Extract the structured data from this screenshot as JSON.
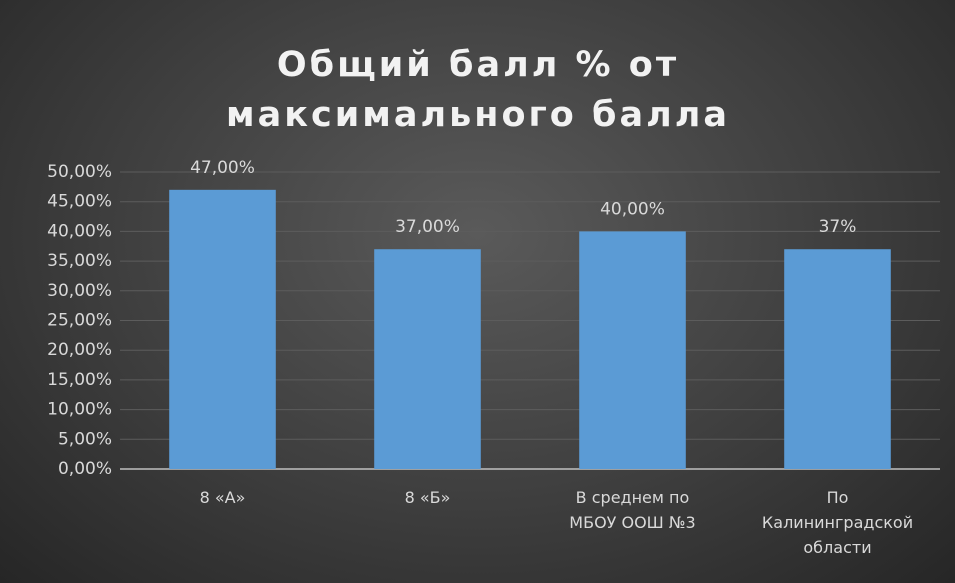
{
  "chart_data": {
    "type": "bar",
    "title": "Общий балл % от максимального балла",
    "categories": [
      "8 «А»",
      "8 «Б»",
      "В среднем по МБОУ ООШ №3",
      "По Калининградской области"
    ],
    "values": [
      47,
      37,
      40,
      37
    ],
    "value_labels": [
      "47,00%",
      "37,00%",
      "40,00%",
      "37%"
    ],
    "color": "#5b9bd5",
    "ylim": [
      0,
      50
    ],
    "yticks": [
      {
        "value": 0,
        "label": "0,00%"
      },
      {
        "value": 5,
        "label": "5,00%"
      },
      {
        "value": 10,
        "label": "10,00%"
      },
      {
        "value": 15,
        "label": "15,00%"
      },
      {
        "value": 20,
        "label": "20,00%"
      },
      {
        "value": 25,
        "label": "25,00%"
      },
      {
        "value": 30,
        "label": "30,00%"
      },
      {
        "value": 35,
        "label": "35,00%"
      },
      {
        "value": 40,
        "label": "40,00%"
      },
      {
        "value": 45,
        "label": "45,00%"
      },
      {
        "value": 50,
        "label": "50,00%"
      }
    ],
    "grid": true
  }
}
